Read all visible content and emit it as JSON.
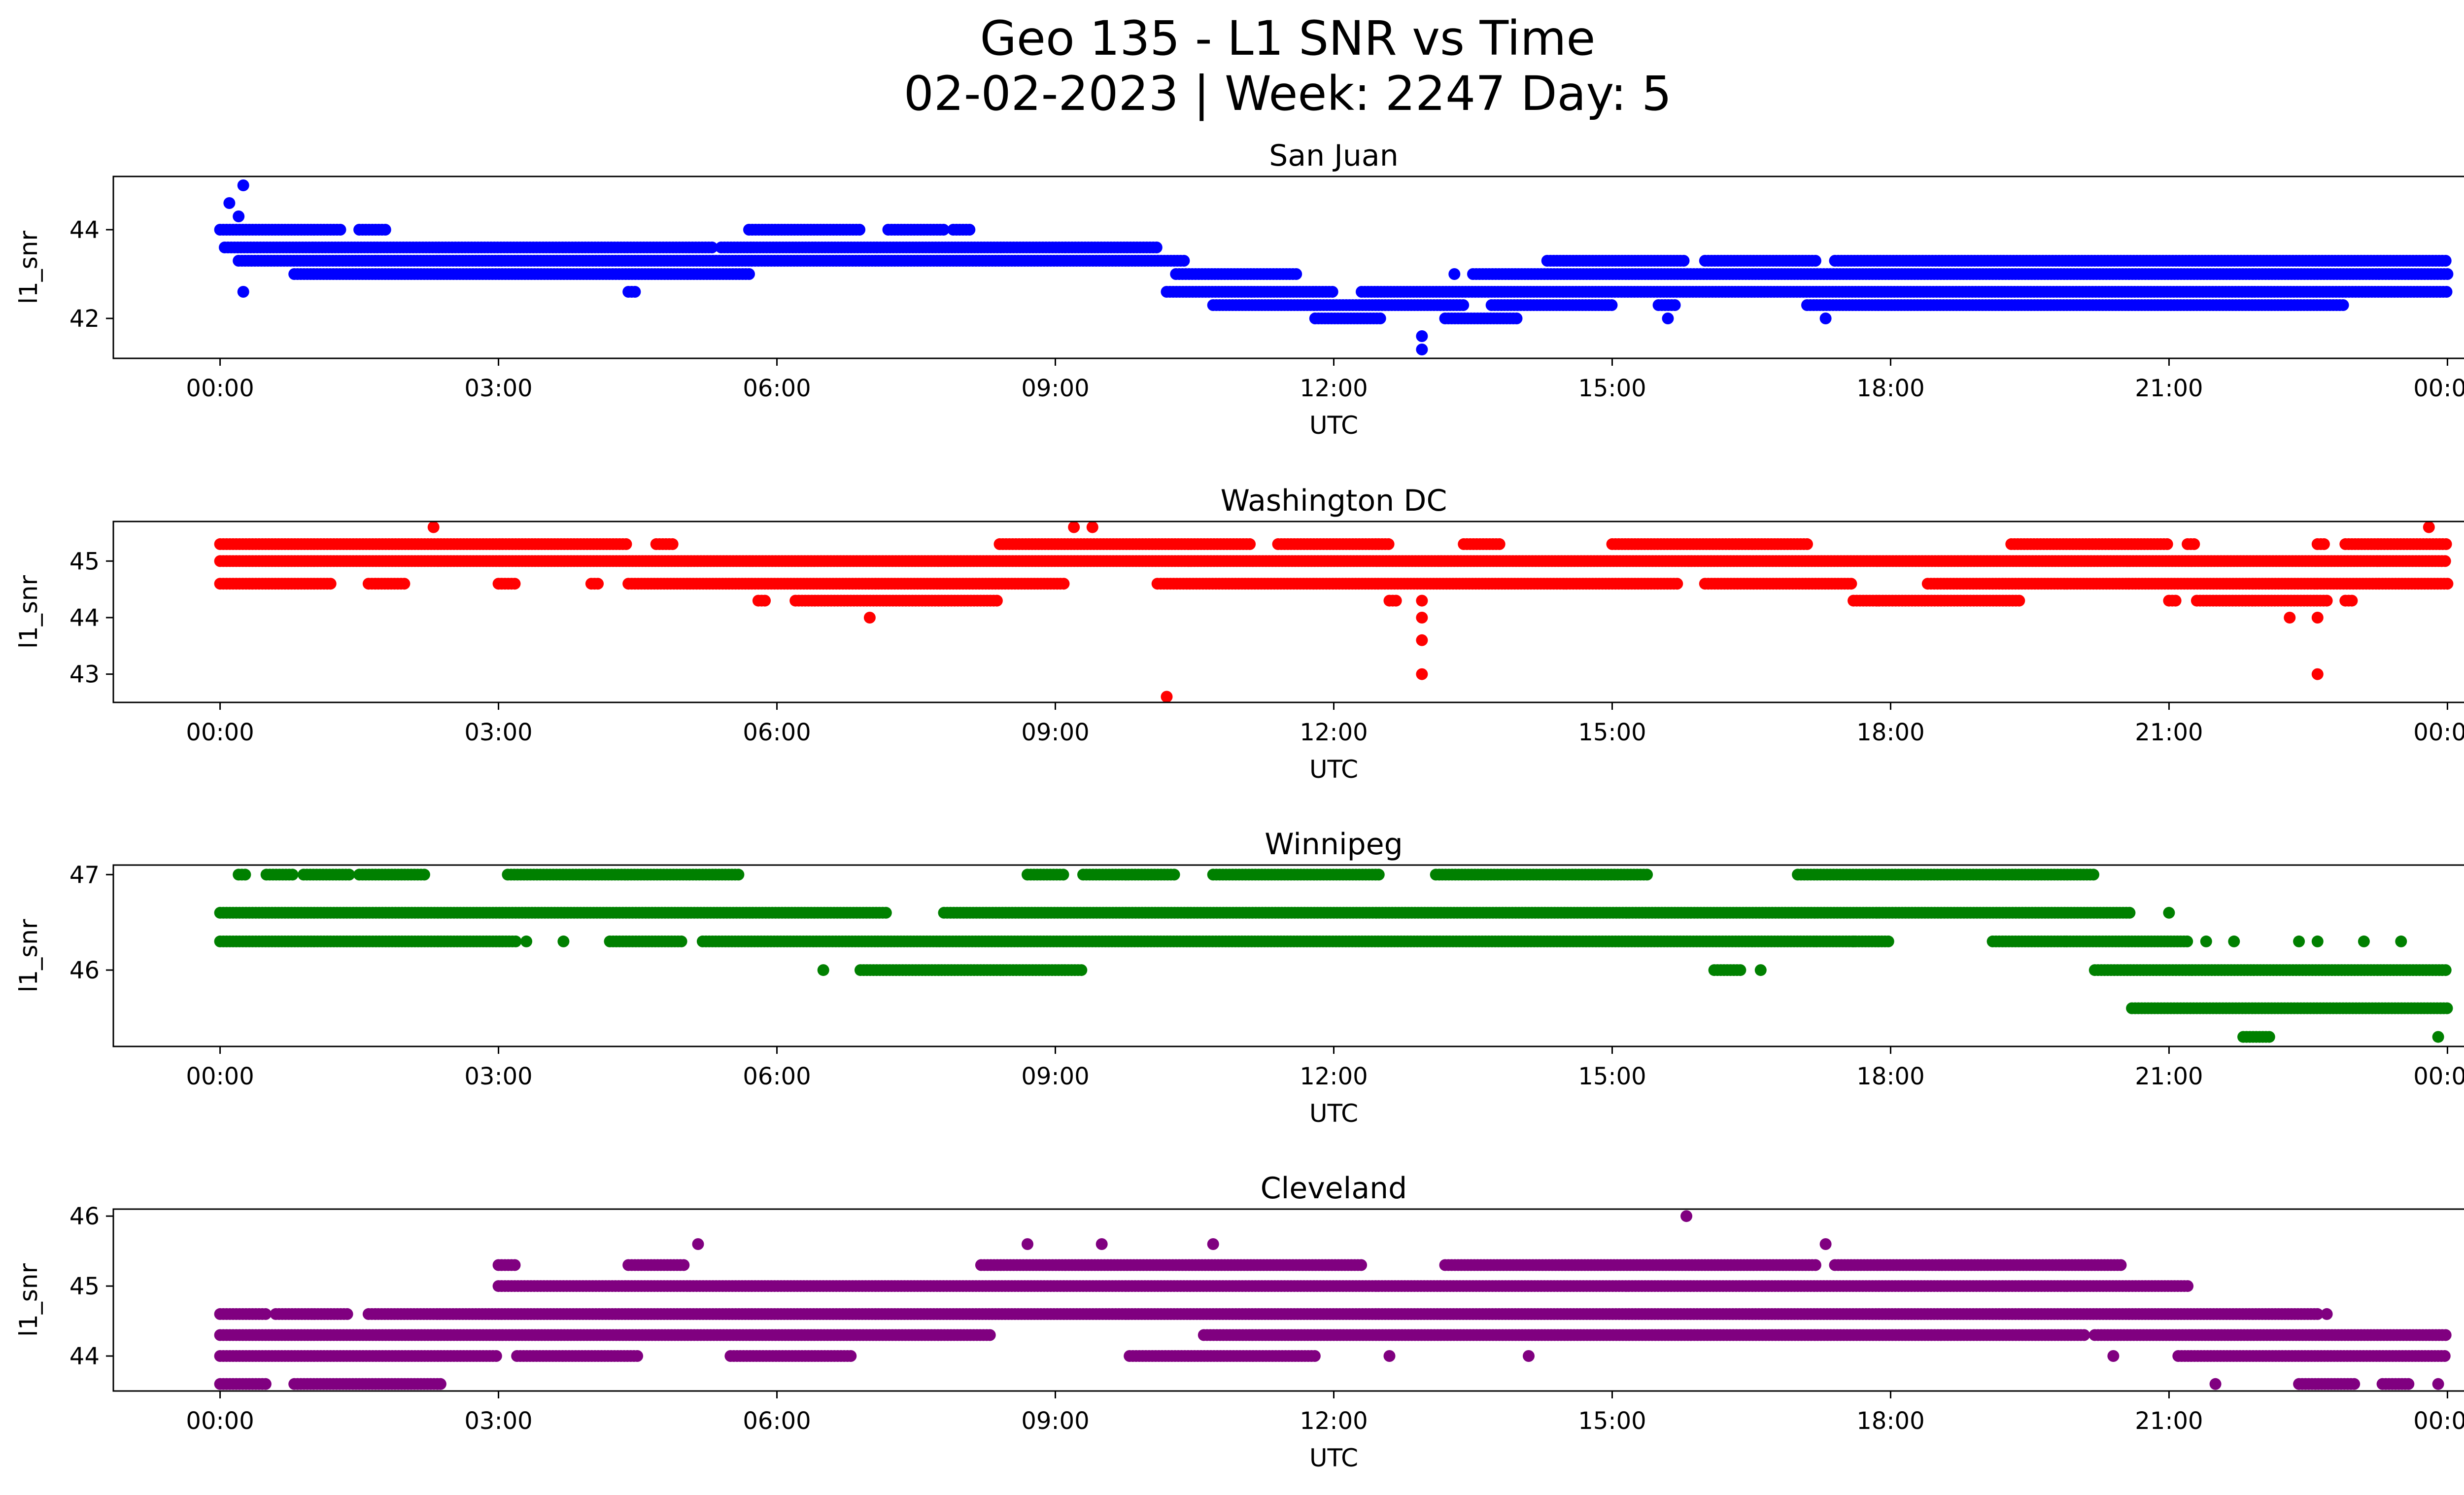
{
  "figure": {
    "title_line1": "Geo 135 - L1 SNR vs Time",
    "title_line2": "02-02-2023 | Week: 2247 Day: 5"
  },
  "chart_data": [
    {
      "type": "scatter",
      "title": "San Juan",
      "xlabel": "UTC",
      "ylabel": "l1_snr",
      "color": "#0000ff",
      "xticks": [
        "00:00",
        "03:00",
        "06:00",
        "09:00",
        "12:00",
        "15:00",
        "18:00",
        "21:00",
        "00:00"
      ],
      "xlim_hours": [
        -1.15,
        25.15
      ],
      "ylim": [
        41.1,
        45.2
      ],
      "yticks": [
        42,
        44
      ],
      "grid": false,
      "bands": [
        {
          "y": 44.0,
          "ranges": [
            [
              0.0,
              1.3
            ],
            [
              1.5,
              1.8
            ],
            [
              5.7,
              6.9
            ],
            [
              7.2,
              7.8
            ],
            [
              7.9,
              8.1
            ]
          ]
        },
        {
          "y": 43.6,
          "ranges": [
            [
              0.05,
              5.3
            ],
            [
              5.4,
              10.1
            ]
          ]
        },
        {
          "y": 43.3,
          "ranges": [
            [
              0.2,
              10.4
            ],
            [
              14.3,
              15.8
            ],
            [
              16.0,
              17.2
            ],
            [
              17.4,
              24.0
            ]
          ]
        },
        {
          "y": 43.0,
          "ranges": [
            [
              0.8,
              5.7
            ],
            [
              10.3,
              11.6
            ],
            [
              13.5,
              24.0
            ]
          ]
        },
        {
          "y": 42.6,
          "ranges": [
            [
              4.4,
              4.5
            ],
            [
              10.2,
              12.0
            ],
            [
              12.3,
              24.0
            ]
          ]
        },
        {
          "y": 42.3,
          "ranges": [
            [
              10.7,
              13.4
            ],
            [
              13.7,
              15.0
            ],
            [
              15.5,
              15.7
            ],
            [
              17.1,
              22.9
            ]
          ]
        },
        {
          "y": 42.0,
          "ranges": [
            [
              11.8,
              12.5
            ],
            [
              13.2,
              14.0
            ]
          ]
        }
      ],
      "points": [
        [
          0.1,
          44.6
        ],
        [
          0.25,
          45.0
        ],
        [
          0.2,
          44.3
        ],
        [
          0.25,
          42.6
        ],
        [
          12.95,
          41.6
        ],
        [
          12.95,
          41.3
        ],
        [
          13.3,
          43.0
        ],
        [
          15.6,
          42.0
        ],
        [
          17.3,
          42.0
        ]
      ]
    },
    {
      "type": "scatter",
      "title": "Washington DC",
      "xlabel": "UTC",
      "ylabel": "l1_snr",
      "color": "#ff0000",
      "xticks": [
        "00:00",
        "03:00",
        "06:00",
        "09:00",
        "12:00",
        "15:00",
        "18:00",
        "21:00",
        "00:00"
      ],
      "xlim_hours": [
        -1.15,
        25.15
      ],
      "ylim": [
        42.5,
        45.7
      ],
      "yticks": [
        43,
        44,
        45
      ],
      "grid": false,
      "bands": [
        {
          "y": 45.3,
          "ranges": [
            [
              0.0,
              4.4
            ],
            [
              4.7,
              4.9
            ],
            [
              8.4,
              11.1
            ],
            [
              11.4,
              12.6
            ],
            [
              13.4,
              13.8
            ],
            [
              15.0,
              17.1
            ],
            [
              19.3,
              21.0
            ],
            [
              21.2,
              21.3
            ],
            [
              22.6,
              22.7
            ],
            [
              22.9,
              24.0
            ]
          ]
        },
        {
          "y": 45.0,
          "ranges": [
            [
              0.0,
              24.0
            ]
          ]
        },
        {
          "y": 44.6,
          "ranges": [
            [
              0.0,
              1.2
            ],
            [
              1.6,
              2.0
            ],
            [
              3.0,
              3.2
            ],
            [
              4.0,
              4.1
            ],
            [
              4.4,
              9.1
            ],
            [
              10.1,
              15.7
            ],
            [
              16.0,
              17.6
            ],
            [
              18.4,
              24.0
            ]
          ]
        },
        {
          "y": 44.3,
          "ranges": [
            [
              5.8,
              5.9
            ],
            [
              6.2,
              8.4
            ],
            [
              12.6,
              12.7
            ],
            [
              17.6,
              19.4
            ],
            [
              21.0,
              21.1
            ],
            [
              21.3,
              22.7
            ],
            [
              22.9,
              23.0
            ]
          ]
        }
      ],
      "points": [
        [
          2.3,
          45.6
        ],
        [
          9.2,
          45.6
        ],
        [
          9.4,
          45.6
        ],
        [
          23.8,
          45.6
        ],
        [
          7.0,
          44.0
        ],
        [
          10.2,
          42.6
        ],
        [
          12.95,
          44.3
        ],
        [
          12.95,
          44.0
        ],
        [
          12.95,
          43.6
        ],
        [
          12.95,
          43.0
        ],
        [
          22.3,
          44.0
        ],
        [
          22.6,
          44.0
        ],
        [
          22.6,
          43.0
        ]
      ]
    },
    {
      "type": "scatter",
      "title": "Winnipeg",
      "xlabel": "UTC",
      "ylabel": "l1_snr",
      "color": "#008000",
      "xticks": [
        "00:00",
        "03:00",
        "06:00",
        "09:00",
        "12:00",
        "15:00",
        "18:00",
        "21:00",
        "00:00"
      ],
      "xlim_hours": [
        -1.15,
        25.15
      ],
      "ylim": [
        45.2,
        47.1
      ],
      "yticks": [
        46,
        47
      ],
      "grid": false,
      "bands": [
        {
          "y": 47.0,
          "ranges": [
            [
              0.2,
              0.3
            ],
            [
              0.5,
              0.8
            ],
            [
              0.9,
              1.4
            ],
            [
              1.5,
              2.2
            ],
            [
              3.1,
              5.6
            ],
            [
              8.7,
              9.1
            ],
            [
              9.3,
              10.3
            ],
            [
              10.7,
              12.5
            ],
            [
              13.1,
              15.4
            ],
            [
              17.0,
              20.2
            ]
          ]
        },
        {
          "y": 46.6,
          "ranges": [
            [
              0.0,
              7.2
            ],
            [
              7.8,
              20.6
            ]
          ]
        },
        {
          "y": 46.3,
          "ranges": [
            [
              0.0,
              3.2
            ],
            [
              4.2,
              5.0
            ],
            [
              5.2,
              18.0
            ],
            [
              19.1,
              19.9
            ],
            [
              19.9,
              21.2
            ]
          ]
        },
        {
          "y": 46.0,
          "ranges": [
            [
              6.9,
              9.3
            ],
            [
              16.1,
              16.4
            ],
            [
              20.2,
              24.0
            ]
          ]
        },
        {
          "y": 45.6,
          "ranges": [
            [
              20.6,
              24.0
            ]
          ]
        },
        {
          "y": 45.3,
          "ranges": [
            [
              21.8,
              22.1
            ]
          ]
        }
      ],
      "points": [
        [
          3.3,
          46.3
        ],
        [
          3.7,
          46.3
        ],
        [
          6.5,
          46.0
        ],
        [
          16.6,
          46.0
        ],
        [
          17.6,
          46.3
        ],
        [
          21.0,
          46.6
        ],
        [
          21.4,
          46.3
        ],
        [
          21.7,
          46.3
        ],
        [
          22.4,
          46.3
        ],
        [
          22.6,
          46.3
        ],
        [
          23.1,
          46.3
        ],
        [
          23.5,
          46.3
        ],
        [
          23.9,
          45.3
        ]
      ]
    },
    {
      "type": "scatter",
      "title": "Cleveland",
      "xlabel": "UTC",
      "ylabel": "l1_snr",
      "color": "#800080",
      "xticks": [
        "00:00",
        "03:00",
        "06:00",
        "09:00",
        "12:00",
        "15:00",
        "18:00",
        "21:00",
        "00:00"
      ],
      "xlim_hours": [
        -1.15,
        25.15
      ],
      "ylim": [
        43.5,
        46.1
      ],
      "yticks": [
        44,
        45,
        46
      ],
      "grid": false,
      "bands": [
        {
          "y": 45.3,
          "ranges": [
            [
              3.0,
              3.2
            ],
            [
              4.4,
              5.0
            ],
            [
              8.2,
              12.3
            ],
            [
              13.2,
              17.2
            ],
            [
              17.4,
              20.5
            ]
          ]
        },
        {
          "y": 45.0,
          "ranges": [
            [
              3.0,
              21.2
            ]
          ]
        },
        {
          "y": 44.6,
          "ranges": [
            [
              0.0,
              0.5
            ],
            [
              0.6,
              1.4
            ],
            [
              1.6,
              22.6
            ]
          ]
        },
        {
          "y": 44.3,
          "ranges": [
            [
              0.0,
              8.3
            ],
            [
              10.6,
              20.1
            ],
            [
              20.2,
              24.0
            ]
          ]
        },
        {
          "y": 44.0,
          "ranges": [
            [
              0.0,
              3.0
            ],
            [
              3.2,
              4.5
            ],
            [
              5.5,
              6.8
            ],
            [
              9.8,
              11.8
            ],
            [
              21.1,
              24.0
            ]
          ]
        },
        {
          "y": 43.6,
          "ranges": [
            [
              0.0,
              0.5
            ],
            [
              0.8,
              2.4
            ],
            [
              22.4,
              23.0
            ],
            [
              23.3,
              23.6
            ]
          ]
        }
      ],
      "points": [
        [
          5.15,
          45.6
        ],
        [
          8.7,
          45.6
        ],
        [
          9.5,
          45.6
        ],
        [
          10.7,
          45.6
        ],
        [
          15.8,
          46.0
        ],
        [
          14.1,
          44.0
        ],
        [
          17.3,
          45.6
        ],
        [
          12.6,
          44.0
        ],
        [
          20.4,
          44.0
        ],
        [
          21.5,
          43.6
        ],
        [
          23.9,
          43.6
        ],
        [
          22.7,
          44.6
        ]
      ]
    }
  ]
}
